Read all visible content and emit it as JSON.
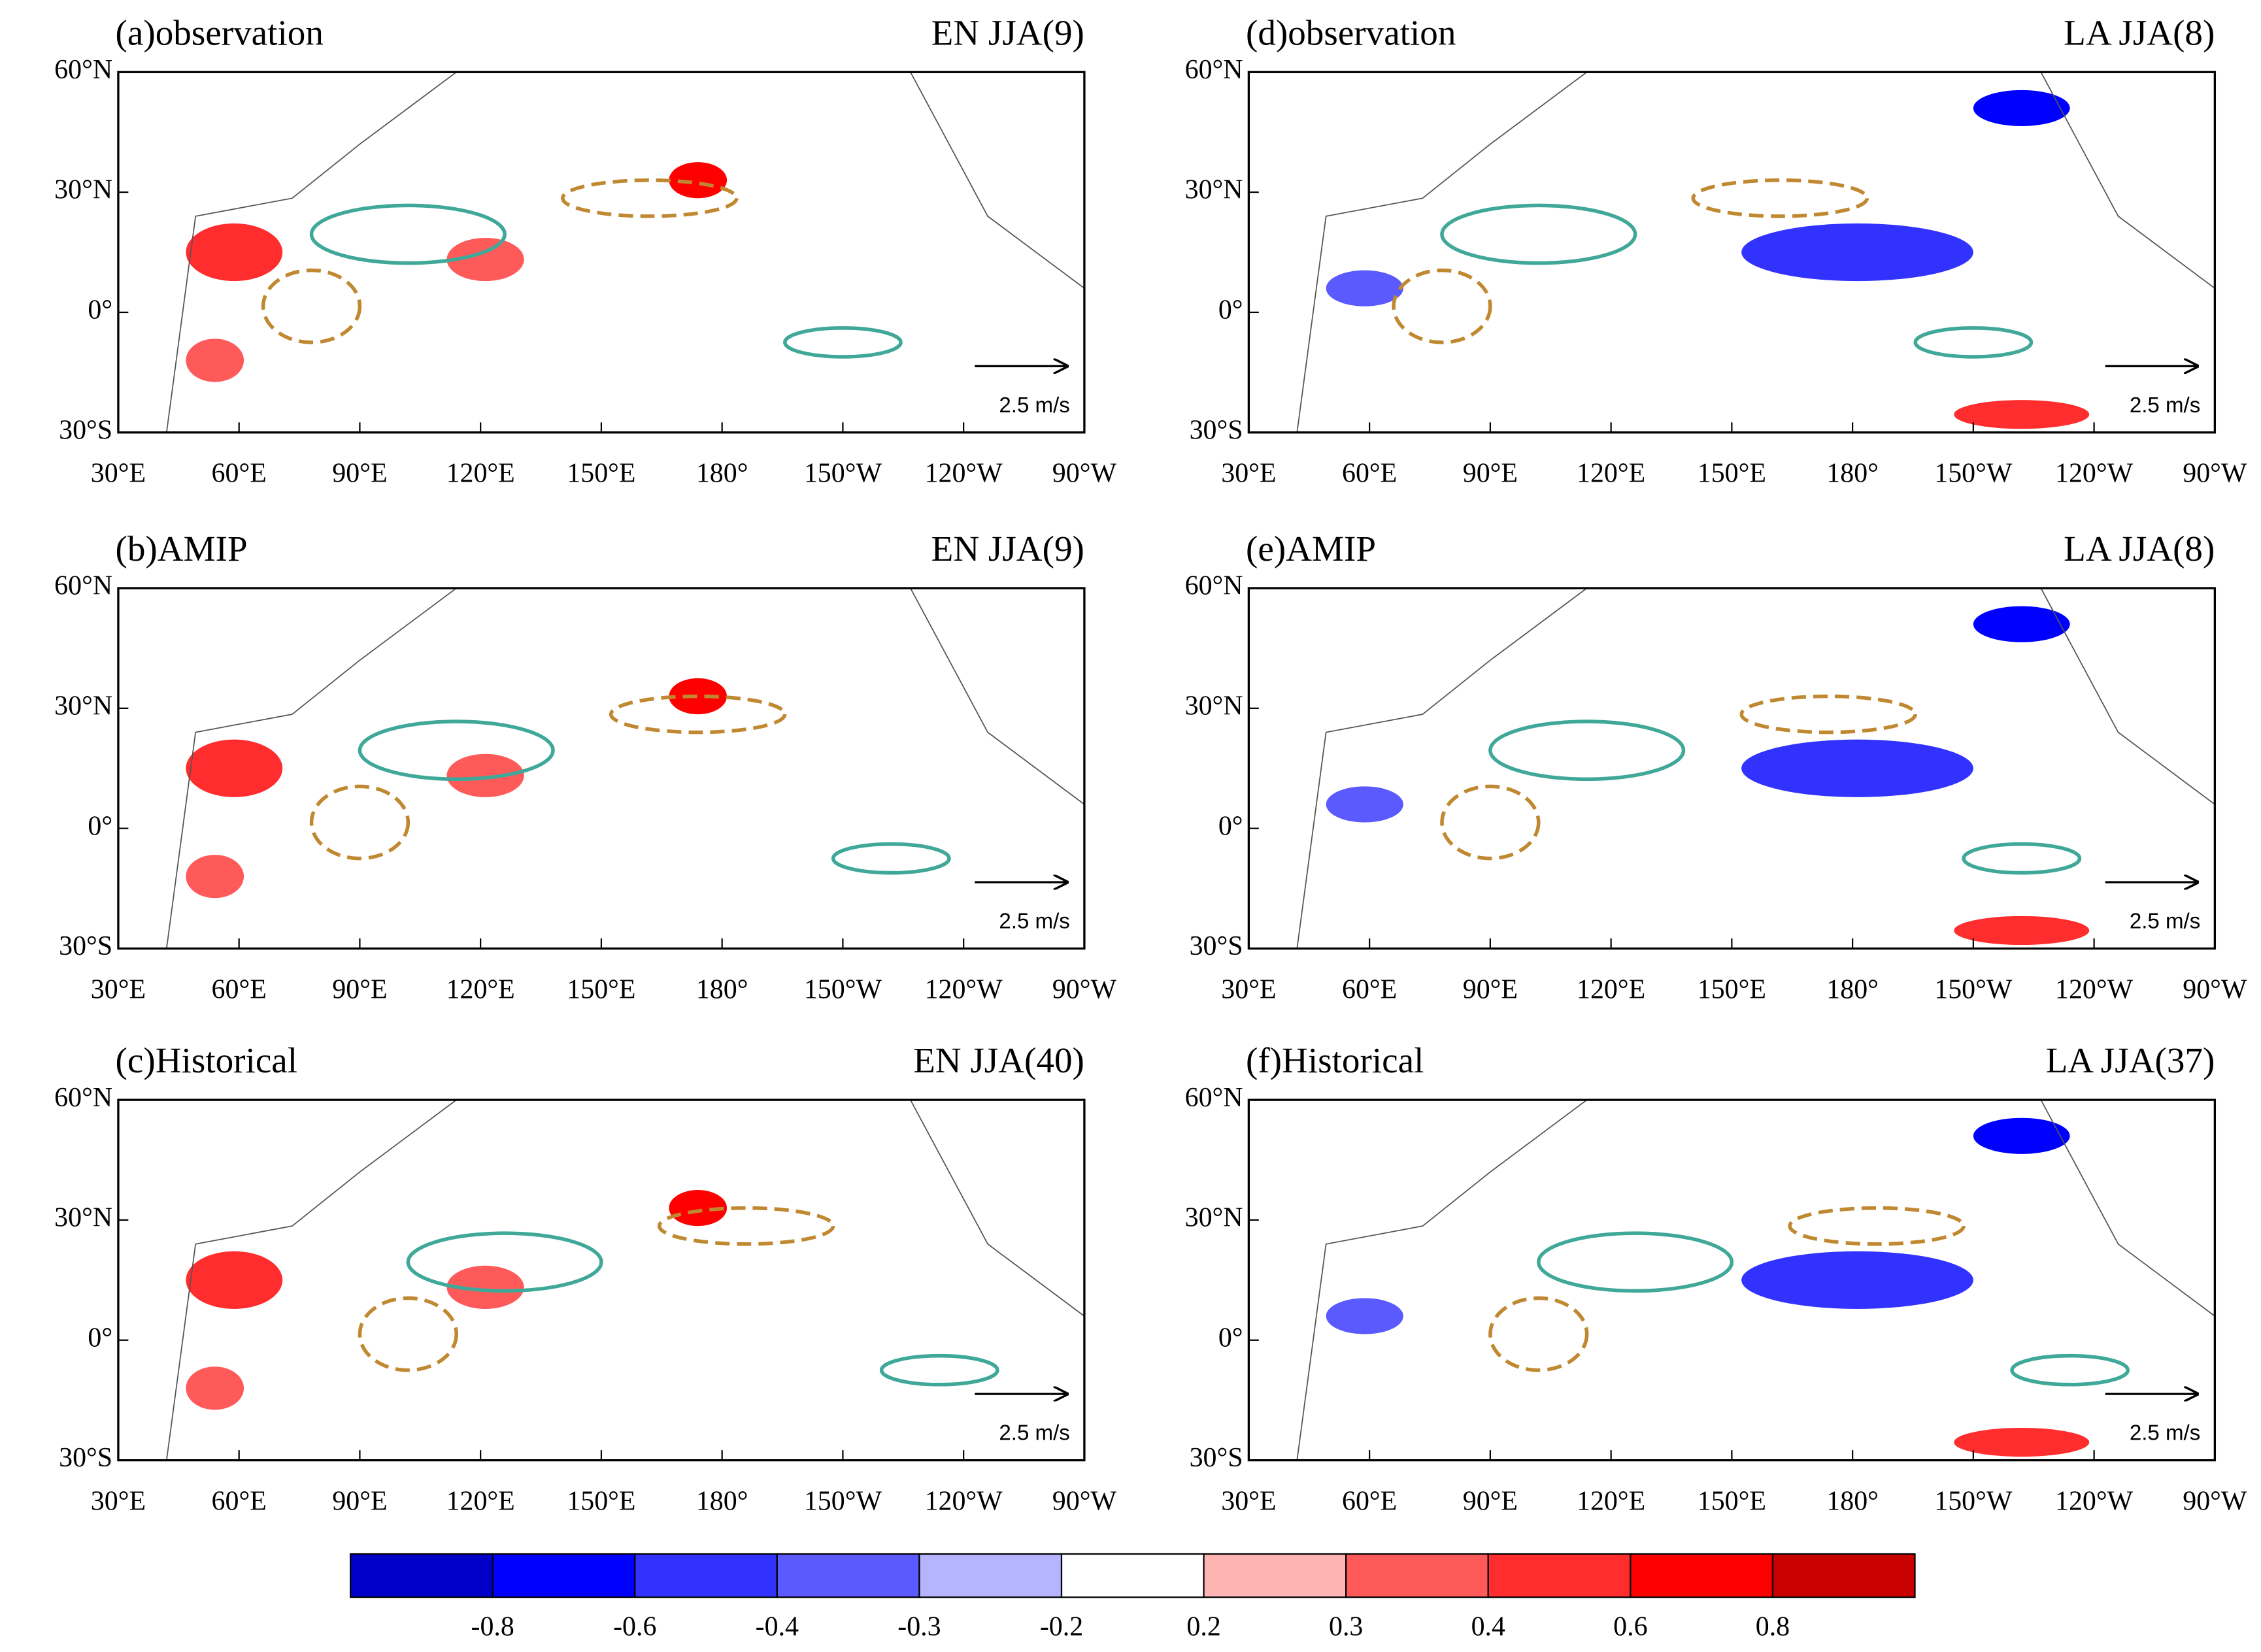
{
  "panels": [
    {
      "label": "(a)observation",
      "case": "EN JJA(9)"
    },
    {
      "label": "(b)AMIP",
      "case": "EN JJA(9)"
    },
    {
      "label": "(c)Historical",
      "case": "EN JJA(40)"
    },
    {
      "label": "(d)observation",
      "case": "LA JJA(8)"
    },
    {
      "label": "(e)AMIP",
      "case": "LA JJA(8)"
    },
    {
      "label": "(f)Historical",
      "case": "LA JJA(37)"
    }
  ],
  "lat_labels": [
    "60°N",
    "30°N",
    "0°",
    "30°S"
  ],
  "lon_labels": [
    "30°E",
    "60°E",
    "90°E",
    "120°E",
    "150°E",
    "180°",
    "150°W",
    "120°W",
    "90°W"
  ],
  "reference_vector": "2.5 m/s",
  "colorbar": {
    "labels": [
      "-0.8",
      "-0.6",
      "-0.4",
      "-0.3",
      "-0.2",
      "0.2",
      "0.3",
      "0.4",
      "0.6",
      "0.8"
    ],
    "colors": [
      "#0000c8",
      "#0000ff",
      "#3232ff",
      "#5a5aff",
      "#b4b4ff",
      "#ffffff",
      "#ffb4b4",
      "#ff5a5a",
      "#ff2d2d",
      "#ff0000",
      "#c80000"
    ]
  }
}
